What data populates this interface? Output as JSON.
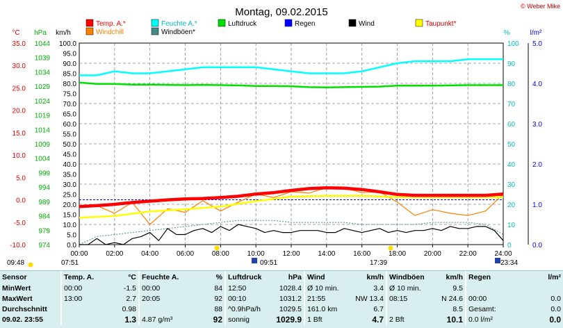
{
  "title": "Montag, 09.02.2015",
  "copyright": "© Weber Mike",
  "axis_labels": {
    "celsius": "°C",
    "hpa": "hPa",
    "kmh": "km/h",
    "percent": "%",
    "lm2": "l/m²"
  },
  "colors": {
    "temp": "#ff0000",
    "humidity": "#00ffff",
    "pressure": "#00e000",
    "rain": "#0000ff",
    "wind": "#000000",
    "dewpoint": "#ffff00",
    "windchill": "#ff8000",
    "gust": "#448888"
  },
  "legend": [
    {
      "label": "Temp. A.*",
      "color": "#ff0000"
    },
    {
      "label": "Feuchte A.*",
      "color": "#00ffff"
    },
    {
      "label": "Luftdruck",
      "color": "#00e000"
    },
    {
      "label": "Regen",
      "color": "#0000ff"
    },
    {
      "label": "Wind",
      "color": "#000000"
    },
    {
      "label": "Taupunkt*",
      "color": "#ffff00"
    },
    {
      "label": "Windchill",
      "color": "#ff8000"
    },
    {
      "label": "Windböen*",
      "color": "#448888"
    }
  ],
  "sun_times": [
    "09:48",
    "07:51",
    "09:51",
    "17:39",
    "23:34"
  ],
  "chart_data": {
    "type": "line",
    "x_ticks": [
      "00:00",
      "02:00",
      "04:00",
      "06:00",
      "08:00",
      "10:00",
      "12:00",
      "14:00",
      "16:00",
      "18:00",
      "20:00",
      "22:00",
      "24:00"
    ],
    "axes": {
      "temperature_c": {
        "range": [
          -10,
          35
        ],
        "ticks": [
          "35.0",
          "30.0",
          "25.0",
          "20.0",
          "15.0",
          "10.0",
          "5.0",
          "0.0",
          "-5.0",
          "-10.0"
        ]
      },
      "pressure_hpa": {
        "range": [
          974,
          1044
        ],
        "ticks": [
          "1044",
          "1039",
          "1034",
          "1029",
          "1024",
          "1019",
          "1014",
          "1009",
          "1004",
          "999",
          "994",
          "989",
          "984",
          "979",
          "974"
        ]
      },
      "wind_kmh": {
        "range": [
          0,
          100
        ],
        "ticks": [
          "100.0",
          "95.0",
          "90.0",
          "85.0",
          "80.0",
          "75.0",
          "70.0",
          "65.0",
          "60.0",
          "55.0",
          "50.0",
          "45.0",
          "40.0",
          "35.0",
          "30.0",
          "25.0",
          "20.0",
          "15.0",
          "10.0",
          "5.0",
          "0.0"
        ]
      },
      "humidity_pct": {
        "range": [
          0,
          100
        ],
        "ticks": [
          "100",
          "90",
          "80",
          "70",
          "60",
          "50",
          "40",
          "30",
          "20",
          "10",
          "0"
        ]
      },
      "rain_lm2": {
        "range": [
          0,
          5
        ],
        "ticks": [
          "5.0",
          "4.0",
          "3.0",
          "2.0",
          "1.0",
          "0.0"
        ]
      }
    },
    "series": [
      {
        "name": "Temp. A.*",
        "axis": "temperature_c",
        "x": [
          0,
          1,
          2,
          3,
          4,
          5,
          6,
          7,
          8,
          9,
          10,
          11,
          12,
          13,
          14,
          15,
          16,
          17,
          18,
          19,
          20,
          21,
          22,
          23,
          24
        ],
        "y": [
          -1.5,
          -1.3,
          -1.0,
          -0.6,
          -0.3,
          0.0,
          0.2,
          0.3,
          0.5,
          0.8,
          1.3,
          1.6,
          2.1,
          2.5,
          2.7,
          2.6,
          2.3,
          1.8,
          1.2,
          1.0,
          1.0,
          1.0,
          1.0,
          1.0,
          1.3
        ]
      },
      {
        "name": "Feuchte A.*",
        "axis": "humidity_pct",
        "x": [
          0,
          1,
          2,
          3,
          4,
          5,
          6,
          7,
          8,
          9,
          10,
          11,
          12,
          13,
          14,
          15,
          16,
          17,
          18,
          19,
          20,
          21,
          22,
          23,
          24
        ],
        "y": [
          84,
          84,
          86,
          85,
          85,
          86,
          87,
          88,
          88,
          88,
          88,
          87,
          86,
          85,
          85,
          85,
          86,
          88,
          90,
          91,
          91,
          91,
          92,
          92,
          92
        ]
      },
      {
        "name": "Luftdruck",
        "axis": "pressure_hpa",
        "x": [
          0,
          1,
          2,
          3,
          4,
          5,
          6,
          7,
          8,
          9,
          10,
          11,
          12,
          13,
          14,
          15,
          16,
          17,
          18,
          19,
          20,
          21,
          22,
          23,
          24
        ],
        "y": [
          1030.3,
          1029.8,
          1029.8,
          1029.6,
          1029.6,
          1029.5,
          1029.4,
          1029.5,
          1029.4,
          1029.3,
          1029.1,
          1029.1,
          1029.0,
          1028.7,
          1028.6,
          1028.7,
          1028.8,
          1028.9,
          1029.2,
          1029.2,
          1029.2,
          1029.3,
          1029.4,
          1029.4,
          1029.4
        ]
      },
      {
        "name": "Taupunkt*",
        "axis": "temperature_c",
        "x": [
          0,
          2,
          4,
          6,
          8,
          10,
          12,
          14,
          16,
          18,
          20,
          22,
          24
        ],
        "y": [
          -4.0,
          -3.6,
          -2.6,
          -2.1,
          -1.5,
          -0.3,
          0.7,
          0.9,
          0.9,
          0.6,
          0.6,
          0.6,
          0.6
        ]
      },
      {
        "name": "Windchill",
        "axis": "temperature_c",
        "x": [
          0,
          1,
          2,
          3,
          4,
          5,
          6,
          7,
          8,
          9,
          10,
          11,
          12,
          13,
          14,
          15,
          16,
          17,
          18,
          19,
          20,
          21,
          22,
          23,
          24
        ],
        "y": [
          -1.5,
          -1.3,
          -3.0,
          -0.6,
          -5.5,
          -2.0,
          -2.8,
          -0.2,
          -2.5,
          -0.5,
          1.3,
          0.5,
          1.8,
          1.5,
          2.7,
          2.6,
          1.6,
          1.8,
          -0.5,
          -3.5,
          -2.2,
          -3.0,
          -3.5,
          -2.5,
          1.3
        ]
      },
      {
        "name": "Wind",
        "axis": "wind_kmh",
        "x": [
          0,
          0.5,
          1,
          1.5,
          2,
          2.5,
          3,
          3.5,
          4,
          4.5,
          5,
          5.5,
          6,
          6.5,
          7,
          7.5,
          8,
          8.5,
          9,
          9.5,
          10,
          10.5,
          11,
          11.5,
          12,
          12.5,
          13,
          13.5,
          14,
          14.5,
          15,
          15.5,
          16,
          16.5,
          17,
          17.5,
          18,
          18.5,
          19,
          19.5,
          20,
          20.5,
          21,
          21.5,
          22,
          22.5,
          23,
          23.5,
          24
        ],
        "y": [
          0,
          0,
          3,
          0,
          1,
          0,
          3,
          4,
          6,
          2,
          8,
          5,
          5,
          7,
          8,
          6,
          9,
          7,
          10,
          9,
          8,
          6,
          7,
          6,
          6,
          7,
          7,
          7,
          6,
          6,
          8,
          7,
          6,
          7,
          8,
          6,
          7,
          6,
          7,
          7,
          8,
          7,
          9,
          8,
          8,
          9,
          9,
          7,
          2
        ]
      },
      {
        "name": "Windböen*",
        "axis": "wind_kmh",
        "x": [
          0,
          1,
          2,
          3,
          4,
          5,
          6,
          7,
          8,
          9,
          10,
          11,
          12,
          13,
          14,
          15,
          16,
          17,
          18,
          19,
          20,
          21,
          22,
          23,
          24
        ],
        "y": [
          0,
          4,
          5,
          6,
          7,
          8,
          9,
          10,
          11,
          12,
          12,
          12,
          11,
          11,
          11,
          11,
          10,
          10,
          10,
          10,
          11,
          11,
          11,
          10,
          5
        ]
      }
    ]
  },
  "stats": {
    "headers": {
      "sensor": "Sensor",
      "temp": "Temp. A.",
      "temp_unit": "°C",
      "hum": "Feuchte A.",
      "hum_unit": "%",
      "press": "Luftdruck",
      "press_unit": "hPa",
      "wind": "Wind",
      "wind_unit": "km/h",
      "gust": "Windböen",
      "gust_unit": "km/h",
      "rain": "Regen",
      "rain_unit": "l/m²"
    },
    "rows": [
      {
        "label": "MinWert",
        "temp_time": "00:00",
        "temp_val": "-1.5",
        "hum_time": "00:00",
        "hum_val": "84",
        "press_time": "12:50",
        "press_val": "1028.4",
        "wind_time": "Ø 10 min.",
        "wind_val": "3.4",
        "gust_time": "Ø 10 min.",
        "gust_val": "9.5",
        "rain_time": "",
        "rain_val": ""
      },
      {
        "label": "MaxWert",
        "temp_time": "13:00",
        "temp_val": "2.7",
        "hum_time": "20:05",
        "hum_val": "92",
        "press_time": "00:10",
        "press_val": "1031.2",
        "wind_time": "21:55",
        "wind_val": "NW 13.4",
        "gust_time": "08:15",
        "gust_val": "N 24.6",
        "rain_time": "00:00",
        "rain_val": "0.0"
      },
      {
        "label": "Durchschnitt",
        "temp_time": "",
        "temp_val": "0.98",
        "hum_time": "",
        "hum_val": "88",
        "press_time": "^0.9hPa/h",
        "press_val": "1029.5",
        "wind_time": "161.0 km",
        "wind_val": "6.7",
        "gust_time": "",
        "gust_val": "8.5",
        "rain_time": "Gesamt:",
        "rain_val": "0.0"
      },
      {
        "label": "09.02. 23:55",
        "temp_time": "",
        "temp_val": "1.3",
        "hum_time": "4.87 g/m³",
        "hum_val": "92",
        "press_time": "sonnig",
        "press_val": "1029.9",
        "wind_time": "1 Bft",
        "wind_val": "4.7",
        "gust_time": "2 Bft",
        "gust_val": "10.1",
        "rain_time": "0.0 l/m²",
        "rain_val": "0.0"
      }
    ]
  }
}
